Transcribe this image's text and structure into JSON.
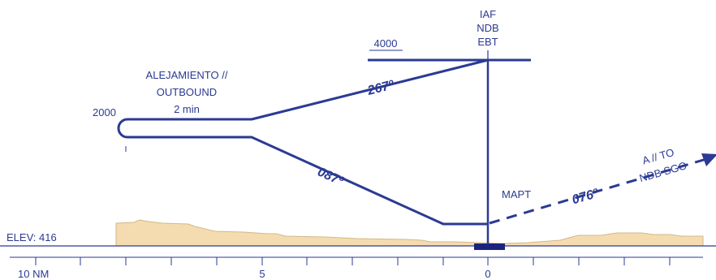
{
  "fix": {
    "line1": "IAF",
    "line2": "NDB",
    "line3": "EBT"
  },
  "altitude_top": "4000",
  "outbound": {
    "line1": "ALEJAMIENTO //",
    "line2": "OUTBOUND",
    "time": "2 min"
  },
  "altitude_turn": "2000",
  "course_outbound": "267º",
  "course_inbound": "087º",
  "course_missed": "076º",
  "mapt_label": "MAPT",
  "missed_destination": {
    "line1": "A // TO",
    "line2": "NDB SGO"
  },
  "elevation": "ELEV: 416",
  "distance_scale": {
    "left": "10 NM",
    "mid": "5",
    "right": "0"
  },
  "colors": {
    "route": "#2b3a93",
    "terrain": "#f5dcb0"
  }
}
